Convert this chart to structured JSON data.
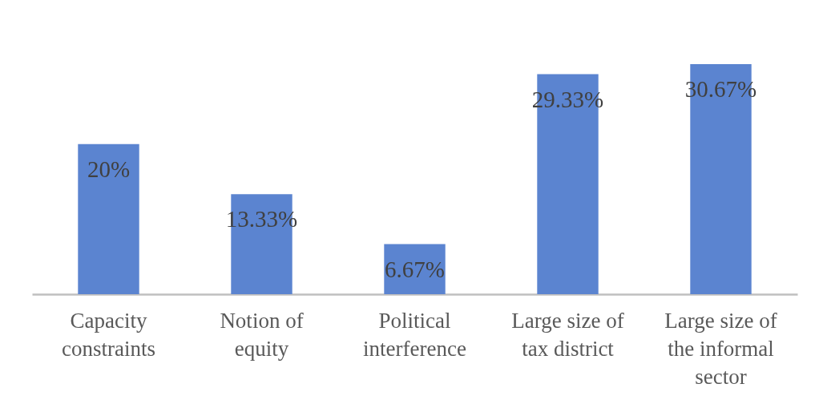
{
  "chart_data": {
    "type": "bar",
    "categories": [
      "Capacity constraints",
      "Notion of equity",
      "Political interference",
      "Large size of tax district",
      "Large size of the informal sector"
    ],
    "values": [
      20,
      13.33,
      6.67,
      29.33,
      30.67
    ],
    "value_labels": [
      "20%",
      "13.33%",
      "6.67%",
      "29.33%",
      "30.67%"
    ],
    "color": "#5b84d0"
  }
}
